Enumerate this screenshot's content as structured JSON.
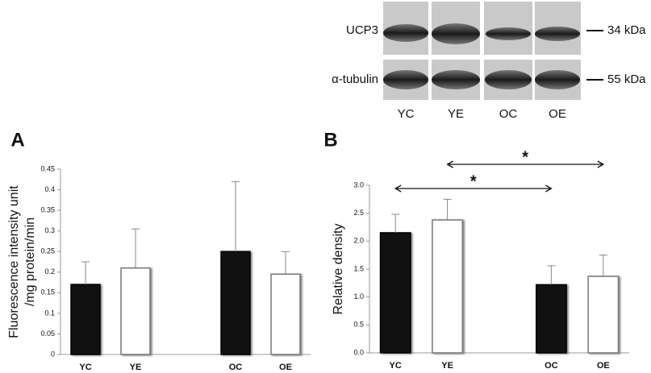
{
  "blot": {
    "rows": [
      {
        "label": "UCP3",
        "marker": "34 kDa"
      },
      {
        "label": "α-tubulin",
        "marker": "55 kDa"
      }
    ],
    "lanes": [
      "YC",
      "YE",
      "OC",
      "OE"
    ]
  },
  "chart_data": [
    {
      "type": "bar",
      "panel": "A",
      "ylabel": [
        "Fluorescence intensity unit",
        "/mg protein/min"
      ],
      "categories": [
        "YC",
        "YE",
        null,
        "OC",
        "OE"
      ],
      "values": [
        0.17,
        0.21,
        null,
        0.25,
        0.195
      ],
      "errors": [
        0.055,
        0.095,
        null,
        0.17,
        0.055
      ],
      "colors": [
        "#111111",
        "#ffffff",
        null,
        "#111111",
        "#ffffff"
      ],
      "ylim": [
        0,
        0.45
      ],
      "yticks": [
        0,
        0.05,
        0.1,
        0.15,
        0.2,
        0.25,
        0.3,
        0.35,
        0.4,
        0.45
      ]
    },
    {
      "type": "bar",
      "panel": "B",
      "ylabel": [
        "Relative density"
      ],
      "categories": [
        "YC",
        "YE",
        null,
        "OC",
        "OE"
      ],
      "values": [
        2.15,
        2.38,
        null,
        1.22,
        1.37
      ],
      "errors": [
        0.33,
        0.37,
        null,
        0.34,
        0.38
      ],
      "colors": [
        "#111111",
        "#ffffff",
        null,
        "#111111",
        "#ffffff"
      ],
      "ylim": [
        0,
        3
      ],
      "yticks": [
        {
          "value": 0,
          "label": "0.0"
        },
        {
          "value": 0.5,
          "label": "0.5"
        },
        {
          "value": 1,
          "label": "1.0"
        },
        {
          "value": 1.5,
          "label": "1.5"
        },
        {
          "value": 2,
          "label": "2.0"
        },
        {
          "value": 2.5,
          "label": "2.5"
        },
        {
          "value": 3,
          "label": "3.0"
        }
      ],
      "annotations": [
        {
          "text": "*",
          "from": "YC",
          "to": "OC"
        },
        {
          "text": "*",
          "from": "YE",
          "to": "OE"
        }
      ]
    }
  ]
}
